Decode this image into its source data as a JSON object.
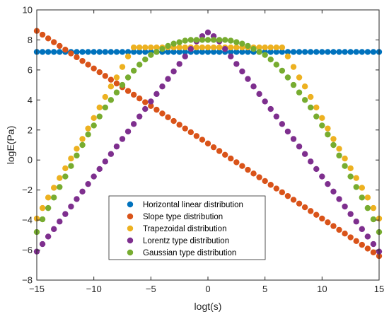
{
  "chart_data": {
    "type": "scatter",
    "xlabel": "logt(s)",
    "ylabel": "logE(Pa)",
    "xlim": [
      -15,
      15
    ],
    "ylim": [
      -8,
      10
    ],
    "xticks": [
      -15,
      -10,
      -5,
      0,
      5,
      10,
      15
    ],
    "yticks": [
      -8,
      -6,
      -4,
      -2,
      0,
      2,
      4,
      6,
      8,
      10
    ],
    "grid": false,
    "legend_position": "lower-center",
    "x": [
      -15,
      -14.5,
      -14,
      -13.5,
      -13,
      -12.5,
      -12,
      -11.5,
      -11,
      -10.5,
      -10,
      -9.5,
      -9,
      -8.5,
      -8,
      -7.5,
      -7,
      -6.5,
      -6,
      -5.5,
      -5,
      -4.5,
      -4,
      -3.5,
      -3,
      -2.5,
      -2,
      -1.5,
      -1,
      -0.5,
      0,
      0.5,
      1,
      1.5,
      2,
      2.5,
      3,
      3.5,
      4,
      4.5,
      5,
      5.5,
      6,
      6.5,
      7,
      7.5,
      8,
      8.5,
      9,
      9.5,
      10,
      10.5,
      11,
      11.5,
      12,
      12.5,
      13,
      13.5,
      14,
      14.5,
      15
    ],
    "series": [
      {
        "name": "Horizontal linear distribution",
        "color": "#0072BD",
        "y": [
          7.2,
          7.2,
          7.2,
          7.2,
          7.2,
          7.2,
          7.2,
          7.2,
          7.2,
          7.2,
          7.2,
          7.2,
          7.2,
          7.2,
          7.2,
          7.2,
          7.2,
          7.2,
          7.2,
          7.2,
          7.2,
          7.2,
          7.2,
          7.2,
          7.2,
          7.2,
          7.2,
          7.2,
          7.2,
          7.2,
          7.2,
          7.2,
          7.2,
          7.2,
          7.2,
          7.2,
          7.2,
          7.2,
          7.2,
          7.2,
          7.2,
          7.2,
          7.2,
          7.2,
          7.2,
          7.2,
          7.2,
          7.2,
          7.2,
          7.2,
          7.2,
          7.2,
          7.2,
          7.2,
          7.2,
          7.2,
          7.2,
          7.2,
          7.2,
          7.2,
          7.2
        ]
      },
      {
        "name": "Slope type distribution",
        "color": "#D95319",
        "y": [
          8.6,
          8.35,
          8.1,
          7.85,
          7.6,
          7.35,
          7.1,
          6.85,
          6.6,
          6.35,
          6.1,
          5.85,
          5.6,
          5.35,
          5.1,
          4.85,
          4.6,
          4.35,
          4.1,
          3.85,
          3.6,
          3.35,
          3.1,
          2.85,
          2.6,
          2.35,
          2.1,
          1.85,
          1.6,
          1.35,
          1.1,
          0.85,
          0.6,
          0.35,
          0.1,
          -0.15,
          -0.4,
          -0.65,
          -0.9,
          -1.15,
          -1.4,
          -1.65,
          -1.9,
          -2.15,
          -2.4,
          -2.65,
          -2.9,
          -3.15,
          -3.4,
          -3.65,
          -3.9,
          -4.15,
          -4.4,
          -4.65,
          -4.9,
          -5.15,
          -5.4,
          -5.65,
          -5.9,
          -6.15,
          -6.4
        ]
      },
      {
        "name": "Trapezoidal distribution",
        "color": "#EDB120",
        "y": [
          -3.9,
          -3.2,
          -2.5,
          -1.85,
          -1.2,
          -0.55,
          0.1,
          0.75,
          1.4,
          2.1,
          2.8,
          3.5,
          4.2,
          4.9,
          5.5,
          6.2,
          6.9,
          7.5,
          7.5,
          7.5,
          7.5,
          7.5,
          7.5,
          7.5,
          7.5,
          7.5,
          7.5,
          7.5,
          7.5,
          7.5,
          7.5,
          7.5,
          7.5,
          7.5,
          7.5,
          7.5,
          7.5,
          7.5,
          7.5,
          7.5,
          7.5,
          7.5,
          7.5,
          7.5,
          6.9,
          6.2,
          5.5,
          4.9,
          4.2,
          3.5,
          2.8,
          2.1,
          1.4,
          0.75,
          0.1,
          -0.55,
          -1.2,
          -1.85,
          -2.5,
          -3.2,
          -3.9
        ]
      },
      {
        "name": "Lorentz type distribution",
        "color": "#7E2F8E",
        "y": [
          -6.1,
          -5.6,
          -5.1,
          -4.6,
          -4.1,
          -3.6,
          -3.1,
          -2.6,
          -2.1,
          -1.6,
          -1.1,
          -0.6,
          -0.1,
          0.4,
          0.9,
          1.4,
          1.9,
          2.4,
          2.9,
          3.4,
          3.9,
          4.4,
          4.9,
          5.4,
          5.9,
          6.4,
          6.9,
          7.4,
          7.9,
          8.25,
          8.5,
          8.25,
          7.9,
          7.4,
          6.9,
          6.4,
          5.9,
          5.4,
          4.9,
          4.4,
          3.9,
          3.4,
          2.9,
          2.4,
          1.9,
          1.4,
          0.9,
          0.4,
          -0.1,
          -0.6,
          -1.1,
          -1.6,
          -2.1,
          -2.6,
          -3.1,
          -3.6,
          -4.1,
          -4.6,
          -5.1,
          -5.6,
          -6.1
        ]
      },
      {
        "name": "Gaussian type distribution",
        "color": "#77AC30",
        "y": [
          -4.8,
          -3.95,
          -3.2,
          -2.5,
          -1.8,
          -1.1,
          -0.4,
          0.3,
          1.0,
          1.7,
          2.3,
          2.9,
          3.5,
          4.0,
          4.5,
          5.0,
          5.5,
          5.95,
          6.35,
          6.7,
          7.0,
          7.2,
          7.4,
          7.6,
          7.75,
          7.85,
          7.95,
          8.0,
          8.0,
          8.0,
          8.0,
          8.0,
          8.0,
          8.0,
          7.95,
          7.85,
          7.75,
          7.6,
          7.4,
          7.2,
          7.0,
          6.7,
          6.35,
          5.95,
          5.5,
          5.0,
          4.5,
          4.0,
          3.5,
          2.9,
          2.3,
          1.7,
          1.0,
          0.3,
          -0.4,
          -1.1,
          -1.8,
          -2.5,
          -3.2,
          -3.95,
          -4.8
        ]
      }
    ]
  }
}
